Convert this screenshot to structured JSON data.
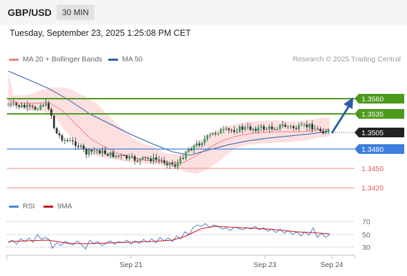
{
  "header": {
    "symbol": "GBP/USD",
    "timeframe": "30 MIN"
  },
  "datetime": "Tuesday, September 23, 2025 1:25:08 PM CET",
  "legend": {
    "ma20_label": "MA 20 + Bollinger Bands",
    "ma20_color": "#f08080",
    "ma50_label": "MA 50",
    "ma50_color": "#2a5caa"
  },
  "credit": "Research © 2025 Trading Central",
  "price_levels": [
    {
      "value": "1.3560",
      "kind": "resistance",
      "color": "#4c9a1c"
    },
    {
      "value": "1.3535",
      "kind": "resistance",
      "color": "#4c9a1c"
    },
    {
      "value": "1.3505",
      "kind": "last",
      "color": "#222222"
    },
    {
      "value": "1.3480",
      "kind": "pivot",
      "color": "#3d7ee0"
    },
    {
      "value": "1.3450",
      "kind": "support",
      "color": "#e05a5a"
    },
    {
      "value": "1.3420",
      "kind": "support",
      "color": "#e05a5a"
    }
  ],
  "rsi": {
    "rsi_label": "RSI",
    "rsi_color": "#4a7fd6",
    "ma_label": "9MA",
    "ma_color": "#d01010",
    "levels": [
      "70",
      "50",
      "30"
    ]
  },
  "x_axis": {
    "labels": [
      "Sep 21",
      "Sep 23",
      "Sep 24"
    ]
  }
}
